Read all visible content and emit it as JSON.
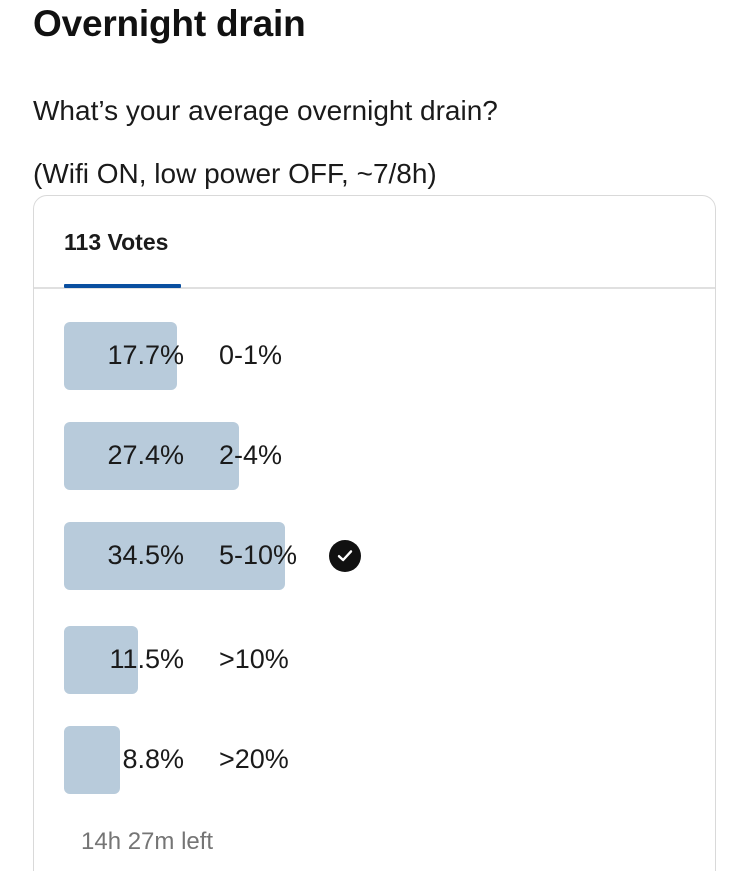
{
  "post": {
    "title": "Overnight drain",
    "question": "What’s your average overnight drain?",
    "subquestion": "(Wifi ON, low power OFF, ~7/8h)"
  },
  "poll": {
    "tab_label": "113 Votes",
    "time_left": "14h 27m left",
    "bar_color": "#b8cbdb",
    "tab_accent": "#0a4fa0",
    "options": [
      {
        "percent": "17.7%",
        "label": "0-1%",
        "fill_fraction": 0.177,
        "selected": false
      },
      {
        "percent": "27.4%",
        "label": "2-4%",
        "fill_fraction": 0.274,
        "selected": false
      },
      {
        "percent": "34.5%",
        "label": "5-10%",
        "fill_fraction": 0.345,
        "selected": true,
        "icon": "check-circle-icon"
      },
      {
        "percent": "11.5%",
        "label": ">10%",
        "fill_fraction": 0.115,
        "selected": false
      },
      {
        "percent": "8.8%",
        "label": ">20%",
        "fill_fraction": 0.088,
        "selected": false
      }
    ]
  }
}
